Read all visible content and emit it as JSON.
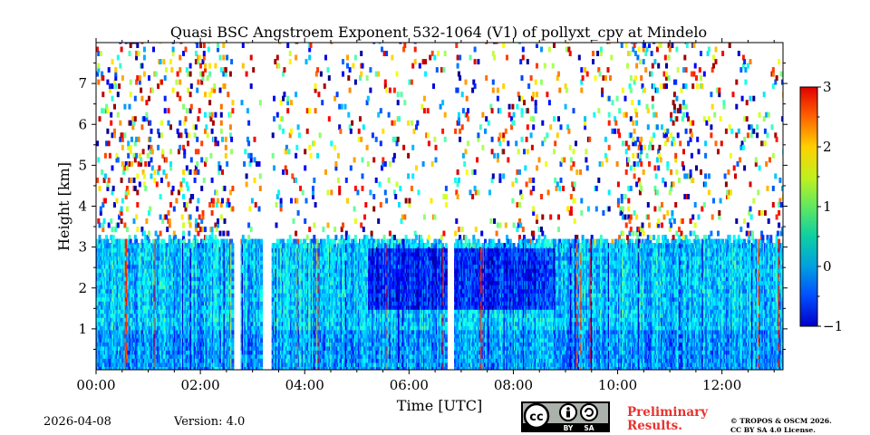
{
  "chart_data": {
    "type": "heatmap",
    "title": "Quasi BSC Angstroem Exponent 532-1064 (V1) of pollyxt_cpv at Mindelo",
    "xlabel": "Time [UTC]",
    "ylabel": "Height [km]",
    "xlim": [
      0,
      13.17
    ],
    "ylim": [
      0,
      8
    ],
    "x_ticks": [
      0,
      2,
      4,
      6,
      8,
      10,
      12
    ],
    "x_tick_labels": [
      "00:00",
      "02:00",
      "04:00",
      "06:00",
      "08:00",
      "10:00",
      "12:00"
    ],
    "y_ticks": [
      1,
      2,
      3,
      4,
      5,
      6,
      7
    ],
    "y_tick_labels": [
      "1",
      "2",
      "3",
      "4",
      "5",
      "6",
      "7"
    ],
    "colorbar": {
      "range": [
        -1,
        3
      ],
      "ticks": [
        -1,
        0,
        1,
        2,
        3
      ],
      "tick_labels": [
        "−1",
        "0",
        "1",
        "2",
        "3"
      ],
      "colormap": "jet"
    },
    "layer_top_km": 3.1,
    "typical_value_in_layer": 0.3,
    "data_gaps_hours": [
      [
        2.6,
        2.75
      ],
      [
        3.15,
        3.35
      ],
      [
        6.7,
        6.85
      ]
    ]
  },
  "footer": {
    "date": "2026-04-08",
    "version": "Version: 4.0",
    "preliminary_line1": "Preliminary",
    "preliminary_line2": "Results.",
    "copyright_line1": "© TROPOS & OSCM 2026.",
    "copyright_line2": "CC BY SA 4.0 License.",
    "license_badge": {
      "cc": "cc",
      "by": "BY",
      "sa": "SA"
    }
  }
}
